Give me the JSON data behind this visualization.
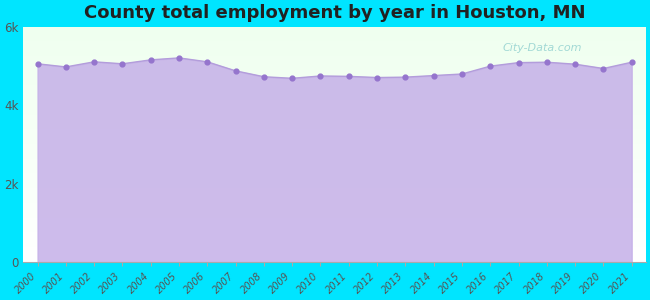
{
  "title": "County total employment by year in Houston, MN",
  "years": [
    2000,
    2001,
    2002,
    2003,
    2004,
    2005,
    2006,
    2007,
    2008,
    2009,
    2010,
    2011,
    2012,
    2013,
    2014,
    2015,
    2016,
    2017,
    2018,
    2019,
    2020,
    2021
  ],
  "values": [
    5050,
    4970,
    5100,
    5050,
    5150,
    5200,
    5100,
    4870,
    4720,
    4680,
    4740,
    4730,
    4700,
    4710,
    4750,
    4790,
    4990,
    5080,
    5090,
    5040,
    4930,
    5090
  ],
  "ylim": [
    0,
    6000
  ],
  "yticks": [
    0,
    2000,
    4000,
    6000
  ],
  "ytick_labels": [
    "0",
    "2k",
    "4k",
    "6k"
  ],
  "line_color": "#b39ddb",
  "fill_color": "#c5b0e8",
  "fill_alpha": 0.85,
  "marker_color": "#9575cd",
  "marker_size": 12,
  "bg_outer": "#00e5ff",
  "title_color": "#212121",
  "title_fontsize": 13,
  "tick_label_color": "#555555",
  "watermark": "City-Data.com"
}
